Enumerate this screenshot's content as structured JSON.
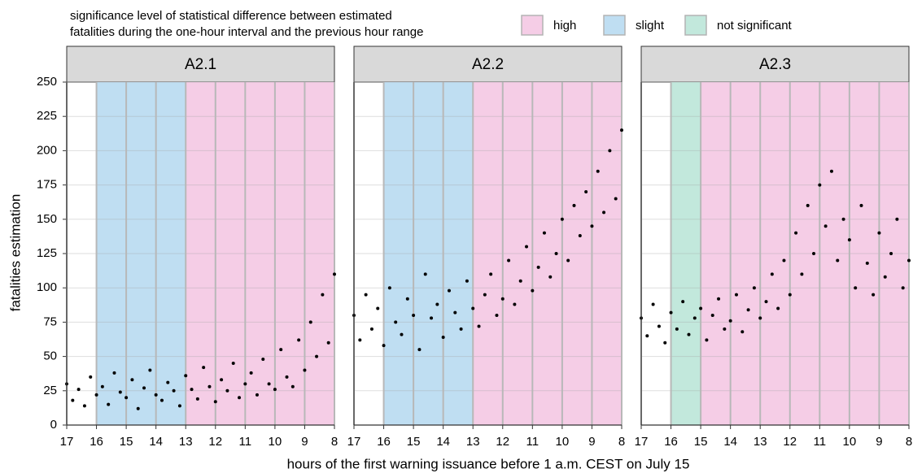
{
  "legend": {
    "title": [
      "significance level of statistical difference between estimated",
      "fatalities during the one-hour interval and the previous hour range"
    ],
    "items": [
      {
        "label": "high",
        "color": "#f5cde6"
      },
      {
        "label": "slight",
        "color": "#bfdef2"
      },
      {
        "label": "not significant",
        "color": "#c2e8dc"
      }
    ]
  },
  "x_label": "hours of the first warning issuance before 1 a.m. CEST on July 15",
  "y_label": "fatalities estimation",
  "chart_data": [
    {
      "type": "scatter",
      "title": "A2.1",
      "color": "#000000",
      "xlim": [
        17,
        8
      ],
      "xticks": [
        17,
        16,
        15,
        14,
        13,
        12,
        11,
        10,
        9,
        8
      ],
      "ylim": [
        0,
        250
      ],
      "yticks": [
        0,
        25,
        50,
        75,
        100,
        125,
        150,
        175,
        200,
        225,
        250
      ],
      "bands": [
        {
          "from": 16,
          "to": 13,
          "level": "slight"
        },
        {
          "from": 13,
          "to": 8,
          "level": "high"
        }
      ],
      "x": [
        17.0,
        16.8,
        16.6,
        16.4,
        16.2,
        16.0,
        15.8,
        15.6,
        15.4,
        15.2,
        15.0,
        14.8,
        14.6,
        14.4,
        14.2,
        14.0,
        13.8,
        13.6,
        13.4,
        13.2,
        13.0,
        12.8,
        12.6,
        12.4,
        12.2,
        12.0,
        11.8,
        11.6,
        11.4,
        11.2,
        11.0,
        10.8,
        10.6,
        10.4,
        10.2,
        10.0,
        9.8,
        9.6,
        9.4,
        9.2,
        9.0,
        8.8,
        8.6,
        8.4,
        8.2,
        8.0
      ],
      "values": [
        30,
        18,
        26,
        14,
        35,
        22,
        28,
        15,
        38,
        24,
        20,
        33,
        12,
        27,
        40,
        22,
        18,
        31,
        25,
        14,
        36,
        26,
        19,
        42,
        28,
        17,
        33,
        25,
        45,
        20,
        30,
        38,
        22,
        48,
        30,
        26,
        55,
        35,
        28,
        62,
        40,
        75,
        50,
        95,
        60,
        110
      ]
    },
    {
      "type": "scatter",
      "title": "A2.2",
      "color": "#000000",
      "xlim": [
        17,
        8
      ],
      "xticks": [
        17,
        16,
        15,
        14,
        13,
        12,
        11,
        10,
        9,
        8
      ],
      "ylim": [
        0,
        250
      ],
      "yticks": [
        0,
        25,
        50,
        75,
        100,
        125,
        150,
        175,
        200,
        225,
        250
      ],
      "bands": [
        {
          "from": 16,
          "to": 13,
          "level": "slight"
        },
        {
          "from": 13,
          "to": 8,
          "level": "high"
        }
      ],
      "x": [
        17.0,
        16.8,
        16.6,
        16.4,
        16.2,
        16.0,
        15.8,
        15.6,
        15.4,
        15.2,
        15.0,
        14.8,
        14.6,
        14.4,
        14.2,
        14.0,
        13.8,
        13.6,
        13.4,
        13.2,
        13.0,
        12.8,
        12.6,
        12.4,
        12.2,
        12.0,
        11.8,
        11.6,
        11.4,
        11.2,
        11.0,
        10.8,
        10.6,
        10.4,
        10.2,
        10.0,
        9.8,
        9.6,
        9.4,
        9.2,
        9.0,
        8.8,
        8.6,
        8.4,
        8.2,
        8.0
      ],
      "values": [
        80,
        62,
        95,
        70,
        85,
        58,
        100,
        75,
        66,
        92,
        80,
        55,
        110,
        78,
        88,
        64,
        98,
        82,
        70,
        105,
        85,
        72,
        95,
        110,
        80,
        92,
        120,
        88,
        105,
        130,
        98,
        115,
        140,
        108,
        125,
        150,
        120,
        160,
        138,
        170,
        145,
        185,
        155,
        200,
        165,
        215
      ]
    },
    {
      "type": "scatter",
      "title": "A2.3",
      "color": "#000000",
      "xlim": [
        17,
        8
      ],
      "xticks": [
        17,
        16,
        15,
        14,
        13,
        12,
        11,
        10,
        9,
        8
      ],
      "ylim": [
        0,
        250
      ],
      "yticks": [
        0,
        25,
        50,
        75,
        100,
        125,
        150,
        175,
        200,
        225,
        250
      ],
      "bands": [
        {
          "from": 16,
          "to": 15,
          "level": "not significant"
        },
        {
          "from": 15,
          "to": 8,
          "level": "high"
        }
      ],
      "x": [
        17.0,
        16.8,
        16.6,
        16.4,
        16.2,
        16.0,
        15.8,
        15.6,
        15.4,
        15.2,
        15.0,
        14.8,
        14.6,
        14.4,
        14.2,
        14.0,
        13.8,
        13.6,
        13.4,
        13.2,
        13.0,
        12.8,
        12.6,
        12.4,
        12.2,
        12.0,
        11.8,
        11.6,
        11.4,
        11.2,
        11.0,
        10.8,
        10.6,
        10.4,
        10.2,
        10.0,
        9.8,
        9.6,
        9.4,
        9.2,
        9.0,
        8.8,
        8.6,
        8.4,
        8.2,
        8.0
      ],
      "values": [
        78,
        65,
        88,
        72,
        60,
        82,
        70,
        90,
        66,
        78,
        85,
        62,
        80,
        92,
        70,
        76,
        95,
        68,
        84,
        100,
        78,
        90,
        110,
        85,
        120,
        95,
        140,
        110,
        160,
        125,
        175,
        145,
        185,
        120,
        150,
        135,
        100,
        160,
        118,
        95,
        140,
        108,
        125,
        150,
        100,
        120
      ]
    }
  ]
}
